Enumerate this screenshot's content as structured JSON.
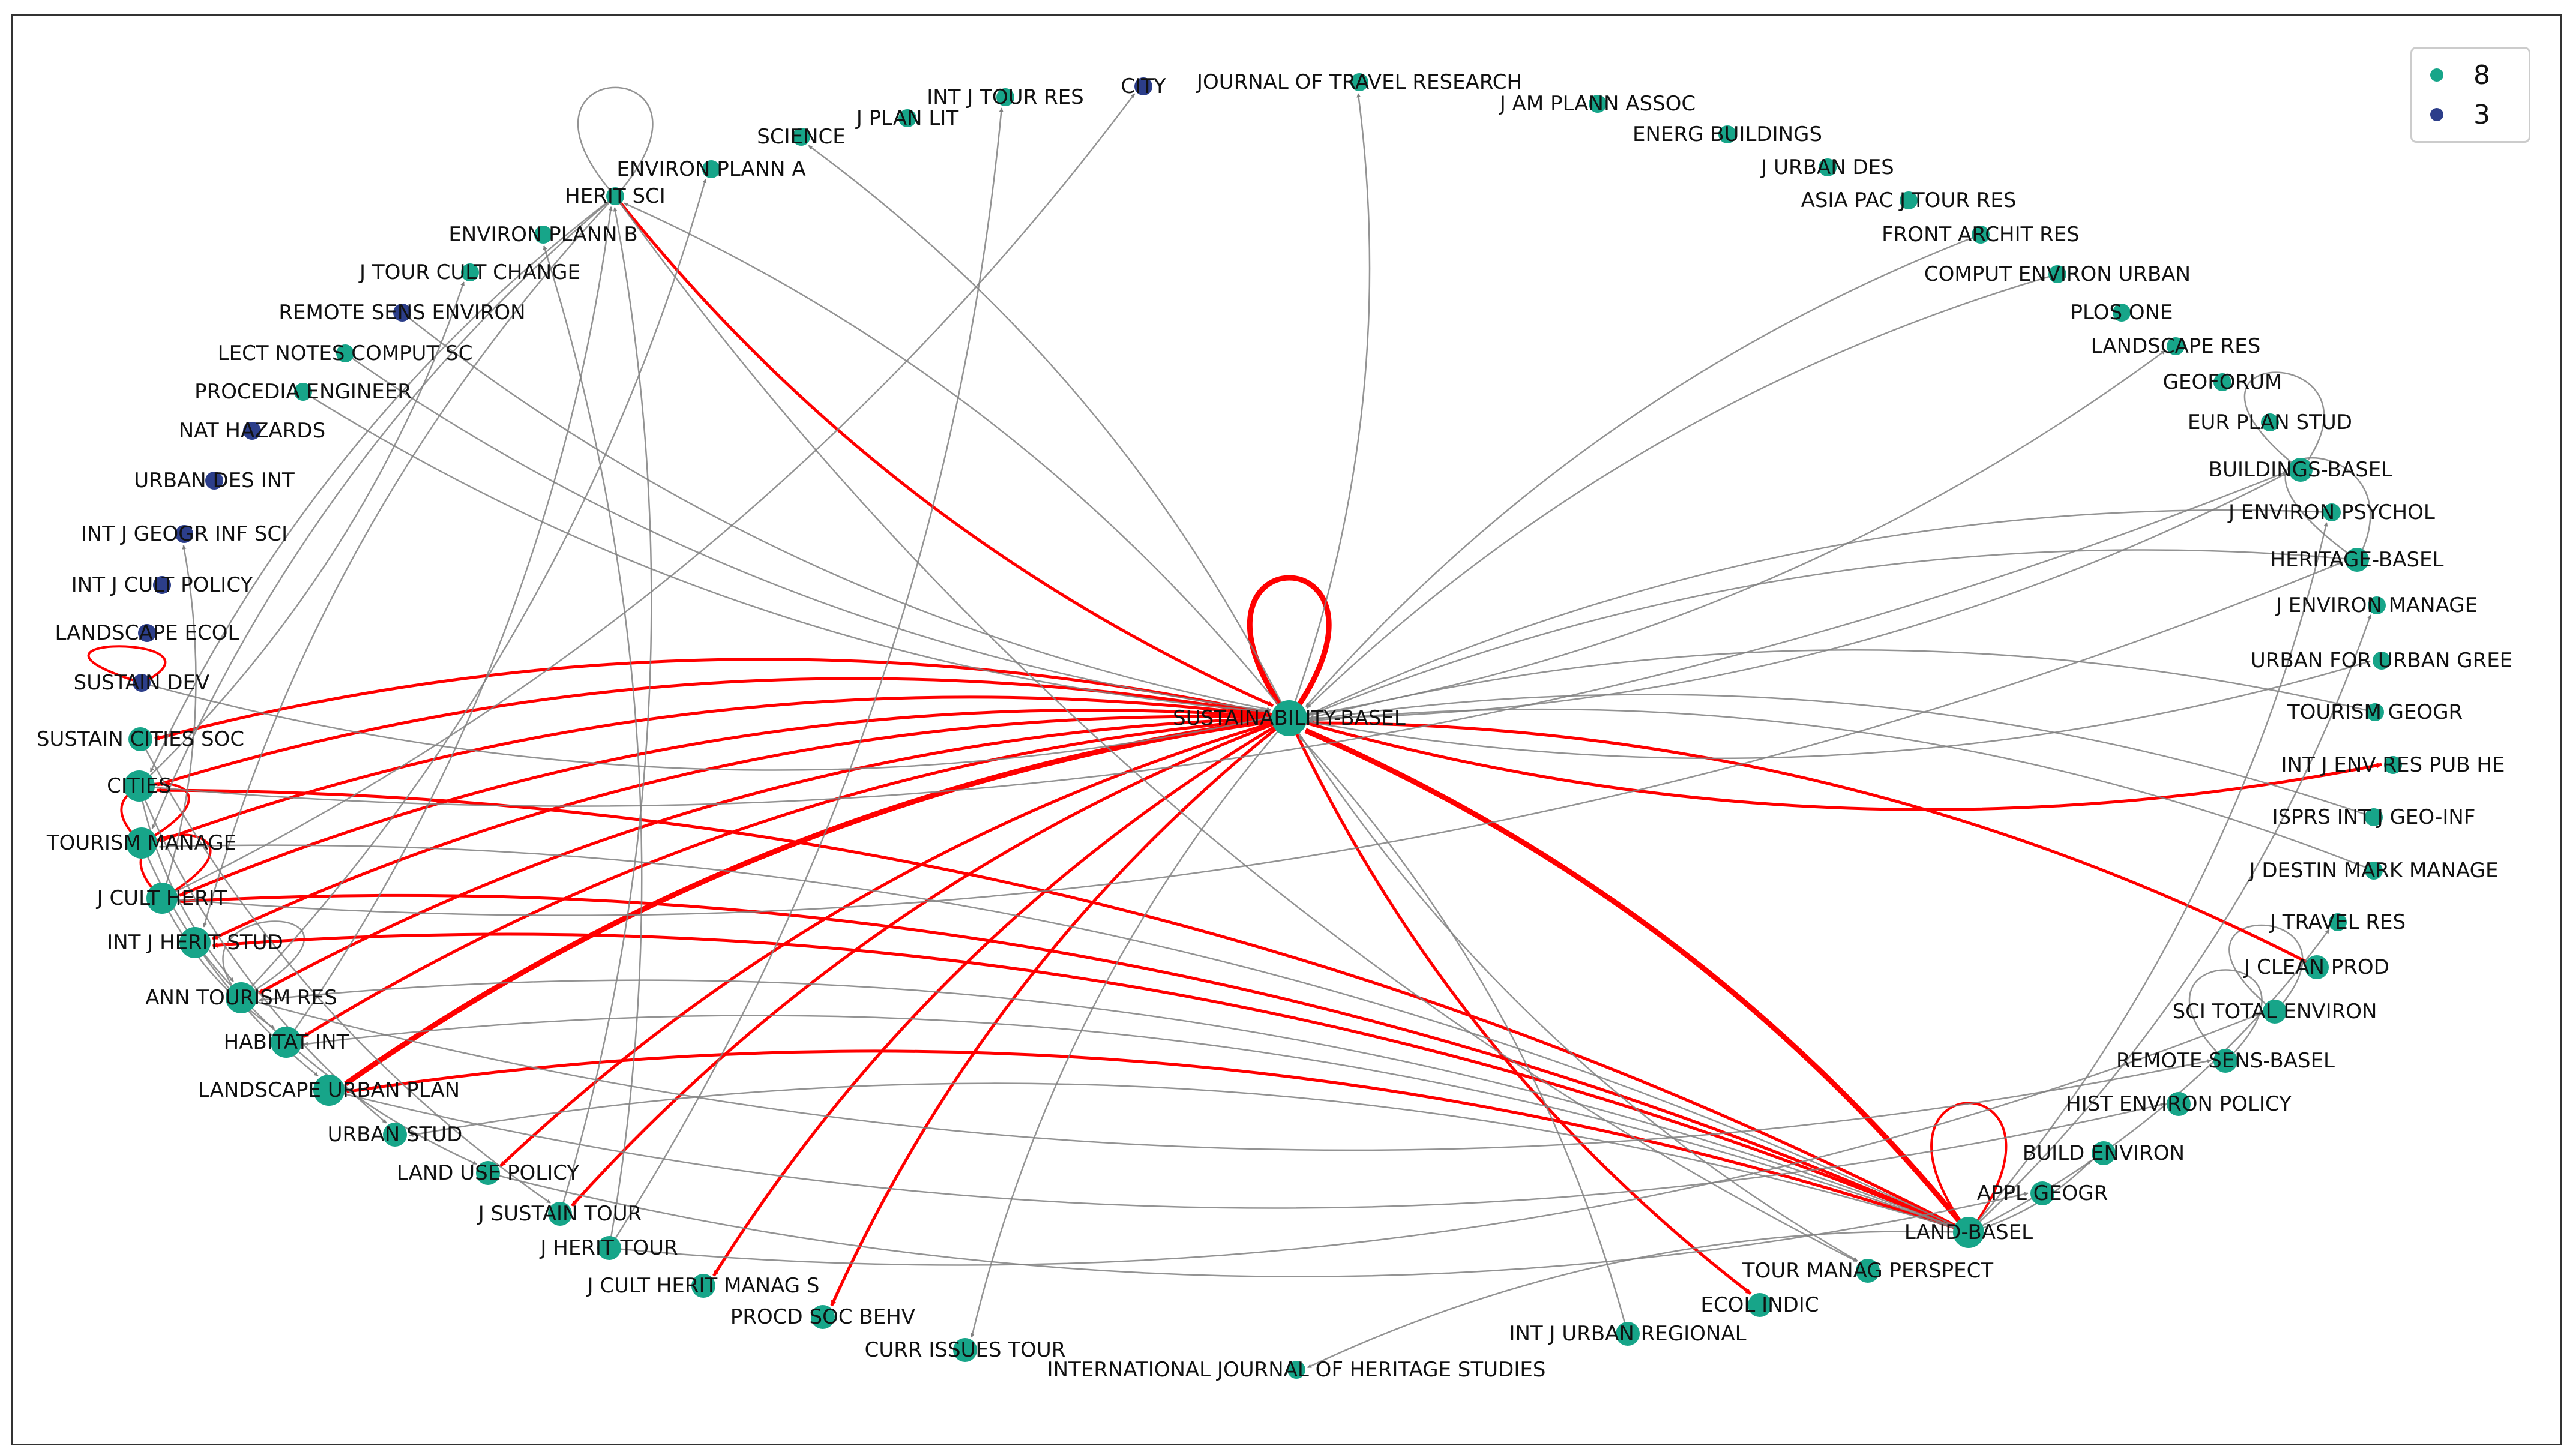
{
  "colors": {
    "cluster8": "#17a589",
    "cluster3": "#2c3e8a",
    "edge_gray": "#808080",
    "edge_red": "#ff0000"
  },
  "legend": [
    {
      "label": "8",
      "color": "#17a589"
    },
    {
      "label": "3",
      "color": "#2c3e8a"
    }
  ],
  "nodes": [
    {
      "id": "SUSTAINABILITY-BASEL",
      "label": "SUSTAINABILITY-BASEL",
      "group": "8",
      "size": "xl"
    },
    {
      "id": "LAND-BASEL",
      "label": "LAND-BASEL",
      "group": "8",
      "size": "l"
    },
    {
      "id": "CITIES",
      "label": "CITIES",
      "group": "8",
      "size": "l"
    },
    {
      "id": "TOURISM MANAGE",
      "label": "TOURISM MANAGE",
      "group": "8",
      "size": "l"
    },
    {
      "id": "J CULT HERIT",
      "label": "J CULT HERIT",
      "group": "8",
      "size": "l"
    },
    {
      "id": "INT J HERIT STUD",
      "label": "INT J HERIT STUD",
      "group": "8",
      "size": "l"
    },
    {
      "id": "ANN TOURISM RES",
      "label": "ANN TOURISM RES",
      "group": "8",
      "size": "l"
    },
    {
      "id": "HABITAT INT",
      "label": "HABITAT INT",
      "group": "8",
      "size": "l"
    },
    {
      "id": "LANDSCAPE URBAN PLAN",
      "label": "LANDSCAPE URBAN PLAN",
      "group": "8",
      "size": "l"
    },
    {
      "id": "URBAN STUD",
      "label": "URBAN STUD",
      "group": "8",
      "size": "m"
    },
    {
      "id": "LAND USE POLICY",
      "label": "LAND USE POLICY",
      "group": "8",
      "size": "m"
    },
    {
      "id": "J SUSTAIN TOUR",
      "label": "J SUSTAIN TOUR",
      "group": "8",
      "size": "m"
    },
    {
      "id": "J HERIT TOUR",
      "label": "J HERIT TOUR",
      "group": "8",
      "size": "m"
    },
    {
      "id": "J CULT HERIT MANAG S",
      "label": "J CULT HERIT MANAG S",
      "group": "8",
      "size": "m"
    },
    {
      "id": "PROCD SOC BEHV",
      "label": "PROCD SOC BEHV",
      "group": "8",
      "size": "m"
    },
    {
      "id": "CURR ISSUES TOUR",
      "label": "CURR ISSUES TOUR",
      "group": "8",
      "size": "m"
    },
    {
      "id": "INTERNATIONAL JOURNAL OF HERITAGE STUDIES",
      "label": "INTERNATIONAL JOURNAL OF HERITAGE STUDIES",
      "group": "8",
      "size": "s"
    },
    {
      "id": "INT J URBAN REGIONAL",
      "label": "INT J URBAN REGIONAL",
      "group": "8",
      "size": "m"
    },
    {
      "id": "ECOL INDIC",
      "label": "ECOL INDIC",
      "group": "8",
      "size": "m"
    },
    {
      "id": "TOUR MANAG PERSPECT",
      "label": "TOUR MANAG PERSPECT",
      "group": "8",
      "size": "m"
    },
    {
      "id": "APPL GEOGR",
      "label": "APPL GEOGR",
      "group": "8",
      "size": "m"
    },
    {
      "id": "BUILD ENVIRON",
      "label": "BUILD ENVIRON",
      "group": "8",
      "size": "m"
    },
    {
      "id": "HIST ENVIRON POLICY",
      "label": "HIST ENVIRON POLICY",
      "group": "8",
      "size": "m"
    },
    {
      "id": "REMOTE SENS-BASEL",
      "label": "REMOTE SENS-BASEL",
      "group": "8",
      "size": "m"
    },
    {
      "id": "SCI TOTAL ENVIRON",
      "label": "SCI TOTAL ENVIRON",
      "group": "8",
      "size": "m"
    },
    {
      "id": "J CLEAN PROD",
      "label": "J CLEAN PROD",
      "group": "8",
      "size": "m"
    },
    {
      "id": "J TRAVEL RES",
      "label": "J TRAVEL RES",
      "group": "8",
      "size": "s"
    },
    {
      "id": "J DESTIN MARK MANAGE",
      "label": "J DESTIN MARK MANAGE",
      "group": "8",
      "size": "s"
    },
    {
      "id": "ISPRS INT J GEO-INF",
      "label": "ISPRS INT J GEO-INF",
      "group": "8",
      "size": "s"
    },
    {
      "id": "INT J ENV RES PUB HE",
      "label": "INT J ENV RES PUB HE",
      "group": "8",
      "size": "s"
    },
    {
      "id": "TOURISM GEOGR",
      "label": "TOURISM GEOGR",
      "group": "8",
      "size": "s"
    },
    {
      "id": "URBAN FOR URBAN GREE",
      "label": "URBAN FOR URBAN GREE",
      "group": "8",
      "size": "s"
    },
    {
      "id": "J ENVIRON MANAGE",
      "label": "J ENVIRON MANAGE",
      "group": "8",
      "size": "s"
    },
    {
      "id": "HERITAGE-BASEL",
      "label": "HERITAGE-BASEL",
      "group": "8",
      "size": "m"
    },
    {
      "id": "J ENVIRON PSYCHOL",
      "label": "J ENVIRON PSYCHOL",
      "group": "8",
      "size": "s"
    },
    {
      "id": "BUILDINGS-BASEL",
      "label": "BUILDINGS-BASEL",
      "group": "8",
      "size": "m"
    },
    {
      "id": "EUR PLAN STUD",
      "label": "EUR PLAN STUD",
      "group": "8",
      "size": "s"
    },
    {
      "id": "GEOFORUM",
      "label": "GEOFORUM",
      "group": "8",
      "size": "s"
    },
    {
      "id": "LANDSCAPE RES",
      "label": "LANDSCAPE RES",
      "group": "8",
      "size": "s"
    },
    {
      "id": "PLOS ONE",
      "label": "PLOS ONE",
      "group": "8",
      "size": "s"
    },
    {
      "id": "COMPUT ENVIRON URBAN",
      "label": "COMPUT ENVIRON URBAN",
      "group": "8",
      "size": "s"
    },
    {
      "id": "FRONT ARCHIT RES",
      "label": "FRONT ARCHIT RES",
      "group": "8",
      "size": "s"
    },
    {
      "id": "ASIA PAC J TOUR RES",
      "label": "ASIA PAC J TOUR RES",
      "group": "8",
      "size": "s"
    },
    {
      "id": "J URBAN DES",
      "label": "J URBAN DES",
      "group": "8",
      "size": "s"
    },
    {
      "id": "ENERG BUILDINGS",
      "label": "ENERG BUILDINGS",
      "group": "8",
      "size": "s"
    },
    {
      "id": "J AM PLANN ASSOC",
      "label": "J AM PLANN ASSOC",
      "group": "8",
      "size": "s"
    },
    {
      "id": "JOURNAL OF TRAVEL RESEARCH",
      "label": "JOURNAL OF TRAVEL RESEARCH",
      "group": "8",
      "size": "s"
    },
    {
      "id": "CITY",
      "label": "CITY",
      "group": "3",
      "size": "s"
    },
    {
      "id": "INT J TOUR RES",
      "label": "INT J TOUR RES",
      "group": "8",
      "size": "s"
    },
    {
      "id": "J PLAN LIT",
      "label": "J PLAN LIT",
      "group": "8",
      "size": "s"
    },
    {
      "id": "SCIENCE",
      "label": "SCIENCE",
      "group": "8",
      "size": "s"
    },
    {
      "id": "ENVIRON PLANN A",
      "label": "ENVIRON PLANN A",
      "group": "8",
      "size": "s"
    },
    {
      "id": "HERIT SCI",
      "label": "HERIT SCI",
      "group": "8",
      "size": "s"
    },
    {
      "id": "ENVIRON PLANN B",
      "label": "ENVIRON PLANN B",
      "group": "8",
      "size": "s"
    },
    {
      "id": "J TOUR CULT CHANGE",
      "label": "J TOUR CULT CHANGE",
      "group": "8",
      "size": "s"
    },
    {
      "id": "REMOTE SENS ENVIRON",
      "label": "REMOTE SENS ENVIRON",
      "group": "3",
      "size": "s"
    },
    {
      "id": "LECT NOTES COMPUT SC",
      "label": "LECT NOTES COMPUT SC",
      "group": "8",
      "size": "s"
    },
    {
      "id": "PROCEDIA ENGINEER",
      "label": "PROCEDIA ENGINEER",
      "group": "8",
      "size": "s"
    },
    {
      "id": "NAT HAZARDS",
      "label": "NAT HAZARDS",
      "group": "3",
      "size": "s"
    },
    {
      "id": "URBAN DES INT",
      "label": "URBAN DES INT",
      "group": "3",
      "size": "s"
    },
    {
      "id": "INT J GEOGR INF SCI",
      "label": "INT J GEOGR INF SCI",
      "group": "3",
      "size": "s"
    },
    {
      "id": "INT J CULT POLICY",
      "label": "INT J CULT POLICY",
      "group": "3",
      "size": "s"
    },
    {
      "id": "LANDSCAPE ECOL",
      "label": "LANDSCAPE ECOL",
      "group": "3",
      "size": "s"
    },
    {
      "id": "SUSTAIN DEV",
      "label": "SUSTAIN DEV",
      "group": "3",
      "size": "s"
    },
    {
      "id": "SUSTAIN CITIES SOC",
      "label": "SUSTAIN CITIES SOC",
      "group": "8",
      "size": "m"
    }
  ],
  "edges": [
    {
      "source": "SUSTAINABILITY-BASEL",
      "target": "SUSTAINABILITY-BASEL",
      "kind": "red",
      "weight": 3
    },
    {
      "source": "LAND-BASEL",
      "target": "LAND-BASEL",
      "kind": "red",
      "weight": 1
    },
    {
      "source": "TOURISM MANAGE",
      "target": "TOURISM MANAGE",
      "kind": "red",
      "weight": 1
    },
    {
      "source": "SUSTAIN DEV",
      "target": "SUSTAIN DEV",
      "kind": "red",
      "weight": 1
    },
    {
      "source": "J CULT HERIT",
      "target": "J CULT HERIT",
      "kind": "red",
      "weight": 1
    },
    {
      "source": "HERIT SCI",
      "target": "HERIT SCI",
      "kind": "gray",
      "weight": 1
    },
    {
      "source": "BUILDINGS-BASEL",
      "target": "BUILDINGS-BASEL",
      "kind": "gray",
      "weight": 1
    },
    {
      "source": "HERITAGE-BASEL",
      "target": "HERITAGE-BASEL",
      "kind": "gray",
      "weight": 1
    },
    {
      "source": "REMOTE SENS-BASEL",
      "target": "REMOTE SENS-BASEL",
      "kind": "gray",
      "weight": 1
    },
    {
      "source": "SCI TOTAL ENVIRON",
      "target": "SCI TOTAL ENVIRON",
      "kind": "gray",
      "weight": 1
    },
    {
      "source": "ANN TOURISM RES",
      "target": "ANN TOURISM RES",
      "kind": "gray",
      "weight": 1
    },
    {
      "source": "SUSTAINABILITY-BASEL",
      "target": "SUSTAIN CITIES SOC",
      "kind": "red",
      "weight": 2
    },
    {
      "source": "SUSTAINABILITY-BASEL",
      "target": "CITIES",
      "kind": "red",
      "weight": 2
    },
    {
      "source": "SUSTAINABILITY-BASEL",
      "target": "TOURISM MANAGE",
      "kind": "red",
      "weight": 2
    },
    {
      "source": "SUSTAINABILITY-BASEL",
      "target": "J CULT HERIT",
      "kind": "red",
      "weight": 2
    },
    {
      "source": "SUSTAINABILITY-BASEL",
      "target": "INT J HERIT STUD",
      "kind": "red",
      "weight": 2
    },
    {
      "source": "SUSTAINABILITY-BASEL",
      "target": "ANN TOURISM RES",
      "kind": "red",
      "weight": 2
    },
    {
      "source": "SUSTAINABILITY-BASEL",
      "target": "HABITAT INT",
      "kind": "red",
      "weight": 2
    },
    {
      "source": "SUSTAINABILITY-BASEL",
      "target": "LANDSCAPE URBAN PLAN",
      "kind": "red",
      "weight": 3
    },
    {
      "source": "SUSTAINABILITY-BASEL",
      "target": "LAND USE POLICY",
      "kind": "red",
      "weight": 2
    },
    {
      "source": "SUSTAINABILITY-BASEL",
      "target": "J SUSTAIN TOUR",
      "kind": "red",
      "weight": 2
    },
    {
      "source": "SUSTAINABILITY-BASEL",
      "target": "J CULT HERIT MANAG S",
      "kind": "red",
      "weight": 2
    },
    {
      "source": "SUSTAINABILITY-BASEL",
      "target": "PROCD SOC BEHV",
      "kind": "red",
      "weight": 2
    },
    {
      "source": "SUSTAINABILITY-BASEL",
      "target": "ECOL INDIC",
      "kind": "red",
      "weight": 2
    },
    {
      "source": "SUSTAINABILITY-BASEL",
      "target": "INT J ENV RES PUB HE",
      "kind": "red",
      "weight": 2
    },
    {
      "source": "HERIT SCI",
      "target": "SUSTAINABILITY-BASEL",
      "kind": "red",
      "weight": 2
    },
    {
      "source": "LAND-BASEL",
      "target": "SUSTAINABILITY-BASEL",
      "kind": "red",
      "weight": 3
    },
    {
      "source": "J CLEAN PROD",
      "target": "SUSTAINABILITY-BASEL",
      "kind": "red",
      "weight": 2
    },
    {
      "source": "LAND-BASEL",
      "target": "CITIES",
      "kind": "red",
      "weight": 2
    },
    {
      "source": "LAND-BASEL",
      "target": "INT J HERIT STUD",
      "kind": "red",
      "weight": 2
    },
    {
      "source": "LAND-BASEL",
      "target": "J CULT HERIT",
      "kind": "red",
      "weight": 2
    },
    {
      "source": "LAND-BASEL",
      "target": "LANDSCAPE URBAN PLAN",
      "kind": "red",
      "weight": 2
    },
    {
      "source": "SUSTAINABILITY-BASEL",
      "target": "JOURNAL OF TRAVEL RESEARCH",
      "kind": "gray",
      "weight": 1
    },
    {
      "source": "SUSTAINABILITY-BASEL",
      "target": "SCIENCE",
      "kind": "gray",
      "weight": 1
    },
    {
      "source": "SUSTAINABILITY-BASEL",
      "target": "HERIT SCI",
      "kind": "gray",
      "weight": 1
    },
    {
      "source": "SUSTAINABILITY-BASEL",
      "target": "CURR ISSUES TOUR",
      "kind": "gray",
      "weight": 1
    },
    {
      "source": "SUSTAINABILITY-BASEL",
      "target": "TOUR MANAG PERSPECT",
      "kind": "gray",
      "weight": 1
    },
    {
      "source": "SUSTAINABILITY-BASEL",
      "target": "LANDSCAPE RES",
      "kind": "gray",
      "weight": 1
    },
    {
      "source": "SUSTAINABILITY-BASEL",
      "target": "URBAN FOR URBAN GREE",
      "kind": "gray",
      "weight": 1
    },
    {
      "source": "SUSTAINABILITY-BASEL",
      "target": "BUILDINGS-BASEL",
      "kind": "gray",
      "weight": 1
    },
    {
      "source": "COMPUT ENVIRON URBAN",
      "target": "SUSTAINABILITY-BASEL",
      "kind": "gray",
      "weight": 1
    },
    {
      "source": "FRONT ARCHIT RES",
      "target": "SUSTAINABILITY-BASEL",
      "kind": "gray",
      "weight": 1
    },
    {
      "source": "J ENVIRON PSYCHOL",
      "target": "SUSTAINABILITY-BASEL",
      "kind": "gray",
      "weight": 1
    },
    {
      "source": "HERITAGE-BASEL",
      "target": "SUSTAINABILITY-BASEL",
      "kind": "gray",
      "weight": 1
    },
    {
      "source": "TOURISM GEOGR",
      "target": "SUSTAINABILITY-BASEL",
      "kind": "gray",
      "weight": 1
    },
    {
      "source": "J DESTIN MARK MANAGE",
      "target": "SUSTAINABILITY-BASEL",
      "kind": "gray",
      "weight": 1
    },
    {
      "source": "ISPRS INT J GEO-INF",
      "target": "SUSTAINABILITY-BASEL",
      "kind": "gray",
      "weight": 1
    },
    {
      "source": "INT J URBAN REGIONAL",
      "target": "SUSTAINABILITY-BASEL",
      "kind": "gray",
      "weight": 1
    },
    {
      "source": "REMOTE SENS ENVIRON",
      "target": "SUSTAINABILITY-BASEL",
      "kind": "gray",
      "weight": 1
    },
    {
      "source": "LECT NOTES COMPUT SC",
      "target": "SUSTAINABILITY-BASEL",
      "kind": "gray",
      "weight": 1
    },
    {
      "source": "PROCEDIA ENGINEER",
      "target": "SUSTAINABILITY-BASEL",
      "kind": "gray",
      "weight": 1
    },
    {
      "source": "SUSTAIN DEV",
      "target": "SUSTAINABILITY-BASEL",
      "kind": "gray",
      "weight": 1
    },
    {
      "source": "HERIT SCI",
      "target": "CITIES",
      "kind": "gray",
      "weight": 1
    },
    {
      "source": "HERIT SCI",
      "target": "TOURISM MANAGE",
      "kind": "gray",
      "weight": 1
    },
    {
      "source": "HERIT SCI",
      "target": "INT J HERIT STUD",
      "kind": "gray",
      "weight": 1
    },
    {
      "source": "HERIT SCI",
      "target": "TOUR MANAG PERSPECT",
      "kind": "gray",
      "weight": 1
    },
    {
      "source": "J HERIT TOUR",
      "target": "INT J TOUR RES",
      "kind": "gray",
      "weight": 1
    },
    {
      "source": "J CULT HERIT",
      "target": "CITY",
      "kind": "gray",
      "weight": 1
    },
    {
      "source": "CITIES",
      "target": "J TOUR CULT CHANGE",
      "kind": "gray",
      "weight": 1
    },
    {
      "source": "J CULT HERIT",
      "target": "INT J GEOGR INF SCI",
      "kind": "gray",
      "weight": 1
    },
    {
      "source": "J HERIT TOUR",
      "target": "ENVIRON PLANN B",
      "kind": "gray",
      "weight": 1
    },
    {
      "source": "LAND-BASEL",
      "target": "URBAN STUD",
      "kind": "gray",
      "weight": 1
    },
    {
      "source": "LAND-BASEL",
      "target": "HABITAT INT",
      "kind": "gray",
      "weight": 1
    },
    {
      "source": "LAND-BASEL",
      "target": "ANN TOURISM RES",
      "kind": "gray",
      "weight": 1
    },
    {
      "source": "LAND-BASEL",
      "target": "TOURISM MANAGE",
      "kind": "gray",
      "weight": 1
    },
    {
      "source": "LAND-BASEL",
      "target": "BUILD ENVIRON",
      "kind": "gray",
      "weight": 1
    },
    {
      "source": "LAND-BASEL",
      "target": "J ENVIRON MANAGE",
      "kind": "gray",
      "weight": 1
    },
    {
      "source": "LAND-BASEL",
      "target": "J ENVIRON PSYCHOL",
      "kind": "gray",
      "weight": 1
    },
    {
      "source": "LAND-BASEL",
      "target": "J TRAVEL RES",
      "kind": "gray",
      "weight": 1
    },
    {
      "source": "LAND-BASEL",
      "target": "INTERNATIONAL JOURNAL OF HERITAGE STUDIES",
      "kind": "gray",
      "weight": 1
    },
    {
      "source": "J HERIT TOUR",
      "target": "SCI TOTAL ENVIRON",
      "kind": "gray",
      "weight": 1
    },
    {
      "source": "LAND USE POLICY",
      "target": "APPL GEOGR",
      "kind": "gray",
      "weight": 1
    },
    {
      "source": "CITIES",
      "target": "BUILDINGS-BASEL",
      "kind": "gray",
      "weight": 1
    },
    {
      "source": "J CULT HERIT",
      "target": "HERITAGE-BASEL",
      "kind": "gray",
      "weight": 1
    },
    {
      "source": "ANN TOURISM RES",
      "target": "REMOTE SENS-BASEL",
      "kind": "gray",
      "weight": 1
    },
    {
      "source": "LANDSCAPE URBAN PLAN",
      "target": "HIST ENVIRON POLICY",
      "kind": "gray",
      "weight": 1
    },
    {
      "source": "CITIES",
      "target": "URBAN STUD",
      "kind": "gray",
      "weight": 1
    },
    {
      "source": "TOURISM MANAGE",
      "target": "LANDSCAPE URBAN PLAN",
      "kind": "gray",
      "weight": 1
    },
    {
      "source": "J CULT HERIT",
      "target": "HABITAT INT",
      "kind": "gray",
      "weight": 1
    },
    {
      "source": "CITIES",
      "target": "ANN TOURISM RES",
      "kind": "gray",
      "weight": 1
    },
    {
      "source": "INT J HERIT STUD",
      "target": "LAND USE POLICY",
      "kind": "gray",
      "weight": 1
    },
    {
      "source": "SUSTAIN CITIES SOC",
      "target": "J SUSTAIN TOUR",
      "kind": "gray",
      "weight": 1
    },
    {
      "source": "J SUSTAIN TOUR",
      "target": "HERIT SCI",
      "kind": "gray",
      "weight": 1
    },
    {
      "source": "HABITAT INT",
      "target": "HERIT SCI",
      "kind": "gray",
      "weight": 1
    },
    {
      "source": "ANN TOURISM RES",
      "target": "ENVIRON PLANN A",
      "kind": "gray",
      "weight": 1
    }
  ]
}
